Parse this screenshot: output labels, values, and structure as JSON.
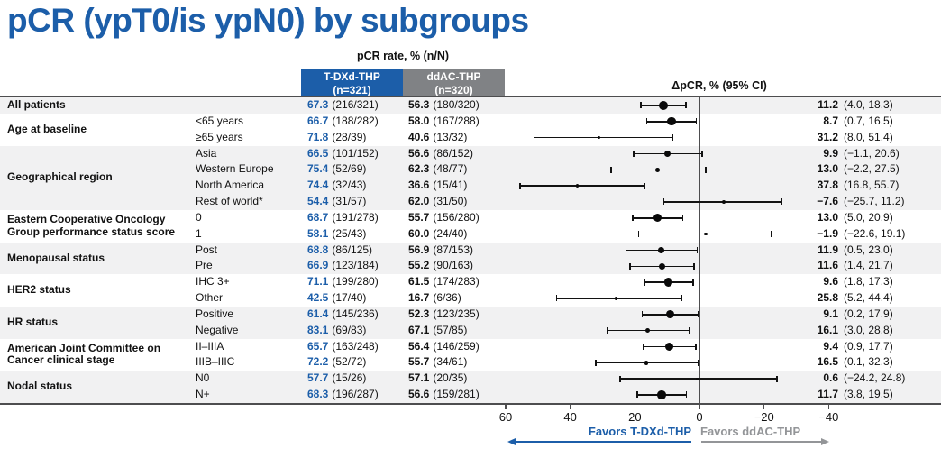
{
  "title": "pCR (ypT0/is ypN0) by subgroups",
  "colors": {
    "accent_blue": "#1C5EA9",
    "header_gray": "#808285",
    "band_gray": "#F1F1F2",
    "rule_gray": "#4D4D4F",
    "favors_gray": "#939598"
  },
  "header": {
    "rate": "pCR rate, % (n/N)",
    "arm1_name": "T-DXd-THP",
    "arm1_n": "(n=321)",
    "arm2_name": "ddAC-THP",
    "arm2_n": "(n=320)",
    "delta": "ΔpCR, % (95% CI)"
  },
  "chart_data": {
    "type": "forest",
    "x_axis": {
      "ticks": [
        60,
        40,
        20,
        0,
        -20,
        -40
      ],
      "reversed": true,
      "zero_reference": 0
    },
    "favors_left": "Favors T-DXd-THP",
    "favors_right": "Favors ddAC-THP",
    "groups": [
      {
        "label_lines": [
          "All patients"
        ],
        "rows": [
          {
            "sublabel": "",
            "arm1_pct": "67.3",
            "arm1_frac": "(216/321)",
            "arm2_pct": "56.3",
            "arm2_frac": "(180/320)",
            "delta": 11.2,
            "ci": [
              4.0,
              18.3
            ],
            "delta_str": "11.2",
            "ci_str": "(4.0, 18.3)"
          }
        ]
      },
      {
        "label_lines": [
          "Age at baseline"
        ],
        "rows": [
          {
            "sublabel": "<65 years",
            "arm1_pct": "66.7",
            "arm1_frac": "(188/282)",
            "arm2_pct": "58.0",
            "arm2_frac": "(167/288)",
            "delta": 8.7,
            "ci": [
              0.7,
              16.5
            ],
            "delta_str": "8.7",
            "ci_str": "(0.7, 16.5)"
          },
          {
            "sublabel": "≥65 years",
            "arm1_pct": "71.8",
            "arm1_frac": "(28/39)",
            "arm2_pct": "40.6",
            "arm2_frac": "(13/32)",
            "delta": 31.2,
            "ci": [
              8.0,
              51.4
            ],
            "delta_str": "31.2",
            "ci_str": "(8.0, 51.4)"
          }
        ]
      },
      {
        "label_lines": [
          "Geographical region"
        ],
        "rows": [
          {
            "sublabel": "Asia",
            "arm1_pct": "66.5",
            "arm1_frac": "(101/152)",
            "arm2_pct": "56.6",
            "arm2_frac": "(86/152)",
            "delta": 9.9,
            "ci": [
              -1.1,
              20.6
            ],
            "delta_str": "9.9",
            "ci_str": "(−1.1, 20.6)"
          },
          {
            "sublabel": "Western Europe",
            "arm1_pct": "75.4",
            "arm1_frac": "(52/69)",
            "arm2_pct": "62.3",
            "arm2_frac": "(48/77)",
            "delta": 13.0,
            "ci": [
              -2.2,
              27.5
            ],
            "delta_str": "13.0",
            "ci_str": "(−2.2, 27.5)"
          },
          {
            "sublabel": "North America",
            "arm1_pct": "74.4",
            "arm1_frac": "(32/43)",
            "arm2_pct": "36.6",
            "arm2_frac": "(15/41)",
            "delta": 37.8,
            "ci": [
              16.8,
              55.7
            ],
            "delta_str": "37.8",
            "ci_str": "(16.8, 55.7)"
          },
          {
            "sublabel": "Rest of world*",
            "arm1_pct": "54.4",
            "arm1_frac": "(31/57)",
            "arm2_pct": "62.0",
            "arm2_frac": "(31/50)",
            "delta": -7.6,
            "ci": [
              -25.7,
              11.2
            ],
            "delta_str": "−7.6",
            "ci_str": "(−25.7, 11.2)"
          }
        ]
      },
      {
        "label_lines": [
          "Eastern Cooperative Oncology",
          "Group performance status score"
        ],
        "rows": [
          {
            "sublabel": "0",
            "arm1_pct": "68.7",
            "arm1_frac": "(191/278)",
            "arm2_pct": "55.7",
            "arm2_frac": "(156/280)",
            "delta": 13.0,
            "ci": [
              5.0,
              20.9
            ],
            "delta_str": "13.0",
            "ci_str": "(5.0, 20.9)"
          },
          {
            "sublabel": "1",
            "arm1_pct": "58.1",
            "arm1_frac": "(25/43)",
            "arm2_pct": "60.0",
            "arm2_frac": "(24/40)",
            "delta": -1.9,
            "ci": [
              -22.6,
              19.1
            ],
            "delta_str": "−1.9",
            "ci_str": "(−22.6, 19.1)"
          }
        ]
      },
      {
        "label_lines": [
          "Menopausal status"
        ],
        "rows": [
          {
            "sublabel": "Post",
            "arm1_pct": "68.8",
            "arm1_frac": "(86/125)",
            "arm2_pct": "56.9",
            "arm2_frac": "(87/153)",
            "delta": 11.9,
            "ci": [
              0.5,
              23.0
            ],
            "delta_str": "11.9",
            "ci_str": "(0.5, 23.0)"
          },
          {
            "sublabel": "Pre",
            "arm1_pct": "66.9",
            "arm1_frac": "(123/184)",
            "arm2_pct": "55.2",
            "arm2_frac": "(90/163)",
            "delta": 11.6,
            "ci": [
              1.4,
              21.7
            ],
            "delta_str": "11.6",
            "ci_str": "(1.4, 21.7)"
          }
        ]
      },
      {
        "label_lines": [
          "HER2 status"
        ],
        "rows": [
          {
            "sublabel": "IHC 3+",
            "arm1_pct": "71.1",
            "arm1_frac": "(199/280)",
            "arm2_pct": "61.5",
            "arm2_frac": "(174/283)",
            "delta": 9.6,
            "ci": [
              1.8,
              17.3
            ],
            "delta_str": "9.6",
            "ci_str": "(1.8, 17.3)"
          },
          {
            "sublabel": "Other",
            "arm1_pct": "42.5",
            "arm1_frac": "(17/40)",
            "arm2_pct": "16.7",
            "arm2_frac": "(6/36)",
            "delta": 25.8,
            "ci": [
              5.2,
              44.4
            ],
            "delta_str": "25.8",
            "ci_str": "(5.2, 44.4)"
          }
        ]
      },
      {
        "label_lines": [
          "HR status"
        ],
        "rows": [
          {
            "sublabel": "Positive",
            "arm1_pct": "61.4",
            "arm1_frac": "(145/236)",
            "arm2_pct": "52.3",
            "arm2_frac": "(123/235)",
            "delta": 9.1,
            "ci": [
              0.2,
              17.9
            ],
            "delta_str": "9.1",
            "ci_str": "(0.2, 17.9)"
          },
          {
            "sublabel": "Negative",
            "arm1_pct": "83.1",
            "arm1_frac": "(69/83)",
            "arm2_pct": "67.1",
            "arm2_frac": "(57/85)",
            "delta": 16.1,
            "ci": [
              3.0,
              28.8
            ],
            "delta_str": "16.1",
            "ci_str": "(3.0, 28.8)"
          }
        ]
      },
      {
        "label_lines": [
          "American Joint Committee on",
          "Cancer clinical stage"
        ],
        "rows": [
          {
            "sublabel": "II–IIIA",
            "arm1_pct": "65.7",
            "arm1_frac": "(163/248)",
            "arm2_pct": "56.4",
            "arm2_frac": "(146/259)",
            "delta": 9.4,
            "ci": [
              0.9,
              17.7
            ],
            "delta_str": "9.4",
            "ci_str": "(0.9, 17.7)"
          },
          {
            "sublabel": "IIIB–IIIC",
            "arm1_pct": "72.2",
            "arm1_frac": "(52/72)",
            "arm2_pct": "55.7",
            "arm2_frac": "(34/61)",
            "delta": 16.5,
            "ci": [
              0.1,
              32.3
            ],
            "delta_str": "16.5",
            "ci_str": "(0.1, 32.3)"
          }
        ]
      },
      {
        "label_lines": [
          "Nodal status"
        ],
        "rows": [
          {
            "sublabel": "N0",
            "arm1_pct": "57.7",
            "arm1_frac": "(15/26)",
            "arm2_pct": "57.1",
            "arm2_frac": "(20/35)",
            "delta": 0.6,
            "ci": [
              -24.2,
              24.8
            ],
            "delta_str": "0.6",
            "ci_str": "(−24.2, 24.8)"
          },
          {
            "sublabel": "N+",
            "arm1_pct": "68.3",
            "arm1_frac": "(196/287)",
            "arm2_pct": "56.6",
            "arm2_frac": "(159/281)",
            "delta": 11.7,
            "ci": [
              3.8,
              19.5
            ],
            "delta_str": "11.7",
            "ci_str": "(3.8, 19.5)"
          }
        ]
      }
    ]
  }
}
